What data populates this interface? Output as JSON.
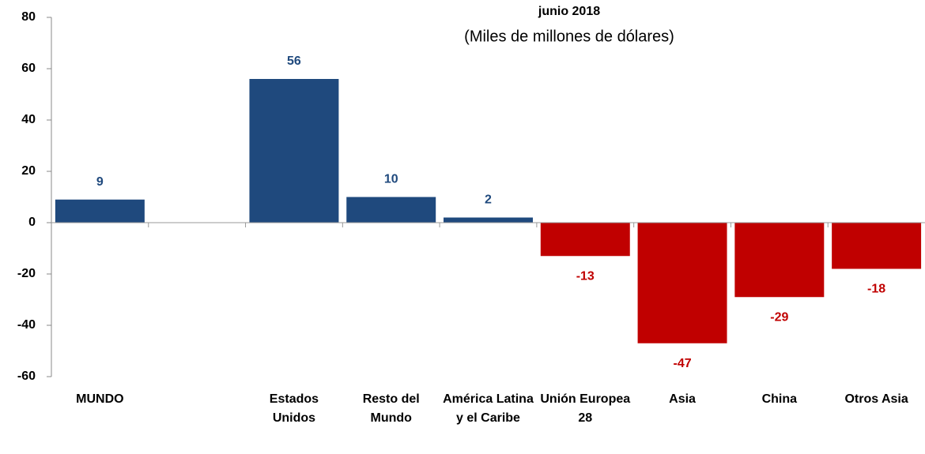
{
  "chart_data": {
    "type": "bar",
    "title": "junio 2018",
    "subtitle": "(Miles de millones de dólares)",
    "categories": [
      "MUNDO",
      null,
      "Estados Unidos",
      "Resto del Mundo",
      "América Latina y el Caribe",
      "Unión Europea 28",
      "Asia",
      "China",
      "Otros Asia"
    ],
    "values": [
      9,
      null,
      56,
      10,
      2,
      -13,
      -47,
      -29,
      -18
    ],
    "color": "#1f497d",
    "negative_color": "#c00000",
    "ylim": [
      -60,
      80
    ],
    "yticks": [
      -60,
      -40,
      -20,
      0,
      20,
      40,
      60,
      80
    ]
  }
}
